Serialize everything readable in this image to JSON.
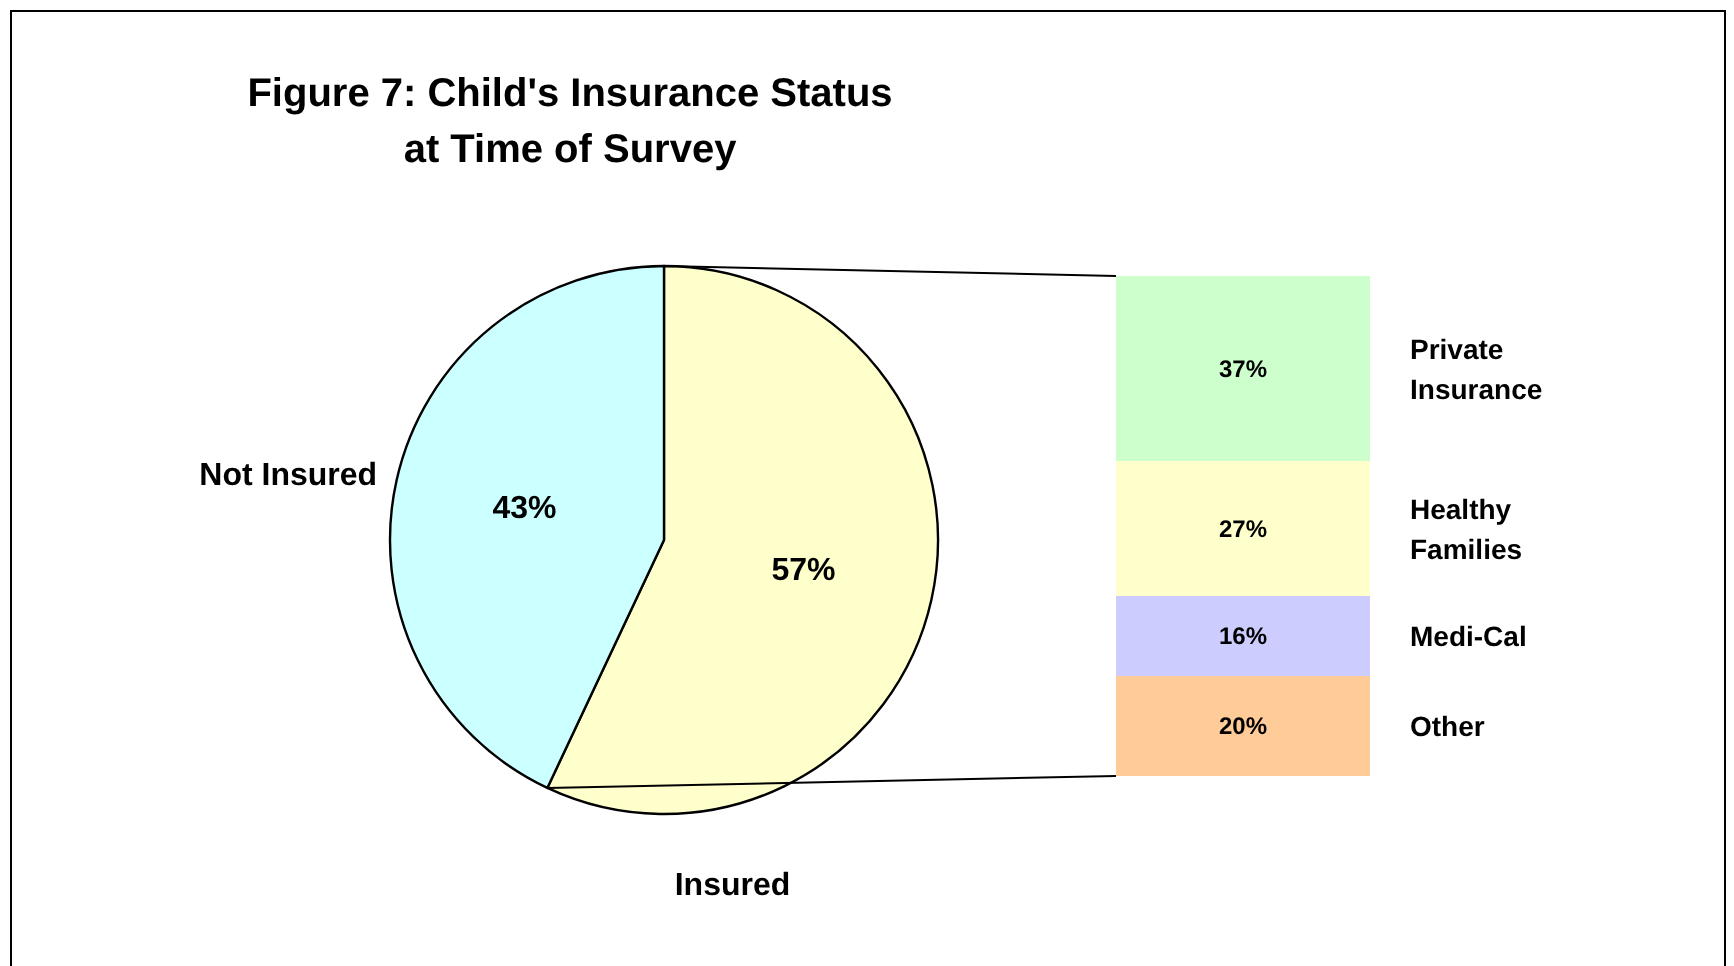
{
  "chart_data": [
    {
      "type": "pie",
      "title": "Figure 7: Child's Insurance Status\nat Time of Survey",
      "categories": [
        "Insured",
        "Not Insured"
      ],
      "values": [
        57,
        43
      ],
      "colors": [
        "#ffffcc",
        "#ccffff"
      ],
      "value_labels": [
        "57%",
        "43%"
      ],
      "legend": false
    },
    {
      "type": "bar",
      "stacked": true,
      "categories": [
        null
      ],
      "legend": false,
      "series": [
        {
          "name": "Other",
          "color": "#ffcc99",
          "values": [
            0.2
          ],
          "value_labels": [
            "20%"
          ]
        },
        {
          "name": "Medi-Cal",
          "color": "#ccccff",
          "values": [
            0.16
          ],
          "value_labels": [
            "16%"
          ]
        },
        {
          "name": "Healthy\nFamilies",
          "color": "#ffffcc",
          "values": [
            0.27
          ],
          "value_labels": [
            "27%"
          ]
        },
        {
          "name": "Private\nInsurance",
          "color": "#ccffcc",
          "values": [
            0.37
          ],
          "value_labels": [
            "37%"
          ]
        }
      ]
    }
  ]
}
